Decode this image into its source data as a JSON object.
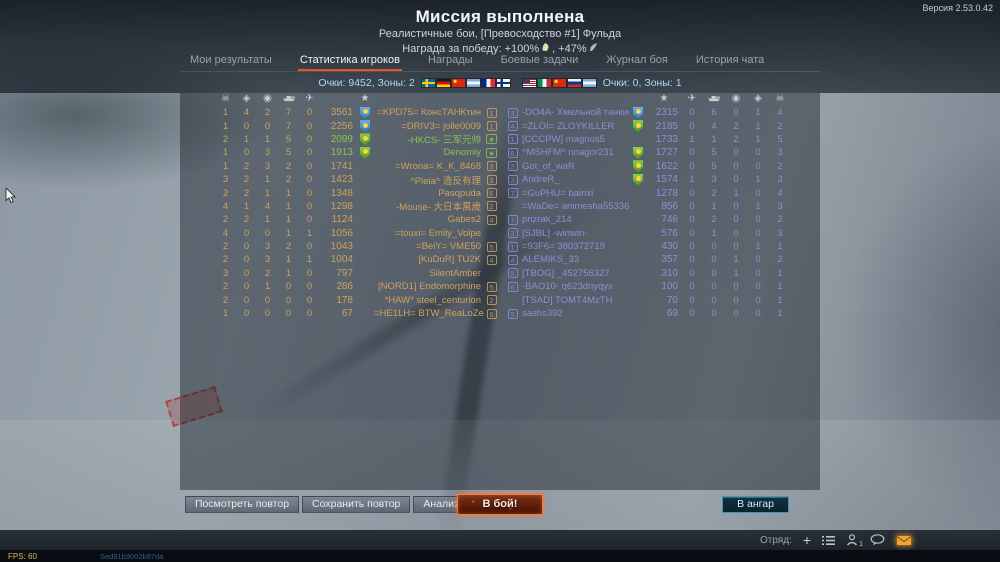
{
  "version": "Версия 2.53.0.42",
  "header": {
    "title": "Миссия выполнена",
    "subtitle": "Реалистичные бои, [Превосходство #1] Фульда",
    "reward_part1": "Награда за победу: +100%",
    "reward_part2": ", +47%"
  },
  "tabs": [
    {
      "label": "Мои результаты",
      "active": false
    },
    {
      "label": "Статистика игроков",
      "active": true
    },
    {
      "label": "Награды",
      "active": false
    },
    {
      "label": "Боевые задачи",
      "active": false
    },
    {
      "label": "Журнал боя",
      "active": false
    },
    {
      "label": "История чата",
      "active": false
    }
  ],
  "scores": {
    "left": "Очки: 9452, Зоны: 2",
    "right": "Очки: 0, Зоны: 1"
  },
  "flags": {
    "left": [
      "sweden",
      "germany",
      "china",
      "argentina",
      "france",
      "finland"
    ],
    "right": [
      "usa",
      "italy",
      "china",
      "russia",
      "argentina"
    ]
  },
  "icons": {
    "deaths": "☠",
    "captures": "◈",
    "assists": "◉",
    "air": "✈",
    "score": "★"
  },
  "left_rows": [
    {
      "stats": [
        1,
        4,
        2,
        7,
        0
      ],
      "score": 3561,
      "badge": "blue",
      "name": "=KPD75= КонсТАНКтин",
      "squad": "1",
      "highlight": false
    },
    {
      "stats": [
        1,
        0,
        0,
        7,
        0
      ],
      "score": 2256,
      "badge": "blue",
      "name": "=DRIV3= jolle0009",
      "squad": "1",
      "highlight": false
    },
    {
      "stats": [
        2,
        1,
        1,
        5,
        0
      ],
      "score": 2099,
      "badge": "green",
      "name": "-HKCS- 三军元帅",
      "squad": "★",
      "highlight": true
    },
    {
      "stats": [
        1,
        0,
        3,
        5,
        0
      ],
      "score": 1913,
      "badge": "green",
      "name": "Denomiy",
      "squad": "★",
      "highlight": true
    },
    {
      "stats": [
        1,
        2,
        3,
        2,
        0
      ],
      "score": 1741,
      "badge": "",
      "name": "=Wrona= K_K_8468",
      "squad": "3",
      "highlight": false
    },
    {
      "stats": [
        3,
        2,
        1,
        2,
        0
      ],
      "score": 1423,
      "badge": "",
      "name": "^Pleia^ 造反有理",
      "squad": "3",
      "highlight": false
    },
    {
      "stats": [
        2,
        2,
        1,
        1,
        0
      ],
      "score": 1348,
      "badge": "",
      "name": "Pasqpuda",
      "squad": "6",
      "highlight": false
    },
    {
      "stats": [
        4,
        1,
        4,
        1,
        0
      ],
      "score": 1298,
      "badge": "",
      "name": "-Mouse- 大日本萬歳",
      "squad": "2",
      "highlight": false
    },
    {
      "stats": [
        2,
        2,
        1,
        1,
        0
      ],
      "score": 1124,
      "badge": "",
      "name": "Gabes2",
      "squad": "4",
      "highlight": false
    },
    {
      "stats": [
        4,
        0,
        0,
        1,
        1
      ],
      "score": 1056,
      "badge": "",
      "name": "=touxi= Emily_Volpe",
      "squad": "",
      "highlight": false
    },
    {
      "stats": [
        2,
        0,
        3,
        2,
        0
      ],
      "score": 1043,
      "badge": "",
      "name": "=BeiY= VME50",
      "squad": "5",
      "highlight": false
    },
    {
      "stats": [
        2,
        0,
        3,
        1,
        1
      ],
      "score": 1004,
      "badge": "",
      "name": "[KuDuR] TU2K",
      "squad": "4",
      "highlight": false
    },
    {
      "stats": [
        3,
        0,
        2,
        1,
        0
      ],
      "score": 797,
      "badge": "",
      "name": "SilentAmber",
      "squad": "",
      "highlight": false
    },
    {
      "stats": [
        2,
        0,
        1,
        0,
        0
      ],
      "score": 286,
      "badge": "",
      "name": "[NORD1] Endomorphine",
      "squad": "5",
      "highlight": false
    },
    {
      "stats": [
        2,
        0,
        0,
        0,
        0
      ],
      "score": 178,
      "badge": "",
      "name": "*HAW* steel_centurion",
      "squad": "2",
      "highlight": false
    },
    {
      "stats": [
        1,
        0,
        0,
        0,
        0
      ],
      "score": 67,
      "badge": "",
      "name": "=HE1LH= BTW_ReaLoZed",
      "squad": "6",
      "highlight": false
    }
  ],
  "right_rows": [
    {
      "squad": "3",
      "name": "-DO4A- Хмельной танкист",
      "badge": "blue",
      "score": 2315,
      "stats": [
        0,
        6,
        0,
        1,
        4
      ]
    },
    {
      "squad": "4",
      "name": "=ZLOI= ZLOYKILLER",
      "badge": "green",
      "score": 2185,
      "stats": [
        0,
        4,
        2,
        1,
        2
      ]
    },
    {
      "squad": "1",
      "name": "[CCCPW] magnus5",
      "badge": "",
      "score": 1733,
      "stats": [
        1,
        1,
        2,
        1,
        5
      ]
    },
    {
      "squad": "6",
      "name": "^MSHFM^ nnagor231",
      "badge": "green",
      "score": 1727,
      "stats": [
        0,
        5,
        0,
        0,
        3
      ]
    },
    {
      "squad": "2",
      "name": "Got_of_waR",
      "badge": "green",
      "score": 1622,
      "stats": [
        0,
        5,
        0,
        0,
        2
      ]
    },
    {
      "squad": "2",
      "name": "AndreR_",
      "badge": "green",
      "score": 1574,
      "stats": [
        1,
        3,
        0,
        1,
        3
      ]
    },
    {
      "squad": "7",
      "name": "=GuPHU= bairixi",
      "badge": "",
      "score": 1278,
      "stats": [
        0,
        2,
        1,
        0,
        4
      ]
    },
    {
      "squad": "",
      "name": "=WaDe= animesha553366",
      "badge": "",
      "score": 856,
      "stats": [
        0,
        1,
        0,
        1,
        3
      ]
    },
    {
      "squad": "7",
      "name": "prizrak_214",
      "badge": "",
      "score": 746,
      "stats": [
        0,
        2,
        0,
        0,
        2
      ]
    },
    {
      "squad": "3",
      "name": "[SJBL] -winwin-",
      "badge": "",
      "score": 576,
      "stats": [
        0,
        1,
        0,
        0,
        3
      ]
    },
    {
      "squad": "1",
      "name": "=93F6= 380372719",
      "badge": "",
      "score": 430,
      "stats": [
        0,
        0,
        0,
        1,
        1
      ]
    },
    {
      "squad": "4",
      "name": "ALEMIKS_33",
      "badge": "",
      "score": 357,
      "stats": [
        0,
        0,
        1,
        0,
        2
      ]
    },
    {
      "squad": "5",
      "name": "[TBOG] _452756327",
      "badge": "",
      "score": 310,
      "stats": [
        0,
        0,
        1,
        0,
        1
      ]
    },
    {
      "squad": "6",
      "name": "-BAO10- q623dnyqyx",
      "badge": "",
      "score": 100,
      "stats": [
        0,
        0,
        0,
        0,
        1
      ]
    },
    {
      "squad": "",
      "name": "[TSAD] TOMT4MzTH",
      "badge": "",
      "score": 70,
      "stats": [
        0,
        0,
        0,
        0,
        1
      ]
    },
    {
      "squad": "5",
      "name": "sashs392",
      "badge": "",
      "score": 69,
      "stats": [
        0,
        0,
        0,
        0,
        1
      ]
    }
  ],
  "actions": {
    "replay": [
      "Посмотреть повтор",
      "Сохранить повтор",
      "Анализ попаданий"
    ],
    "battle": "В бой!",
    "hangar": "В ангар"
  },
  "bottombar": {
    "squad_label": "Отряд:",
    "contacts_badge": "1"
  },
  "statusline": {
    "fps": "FPS: 60",
    "session": "Sed91b9002b87da"
  }
}
